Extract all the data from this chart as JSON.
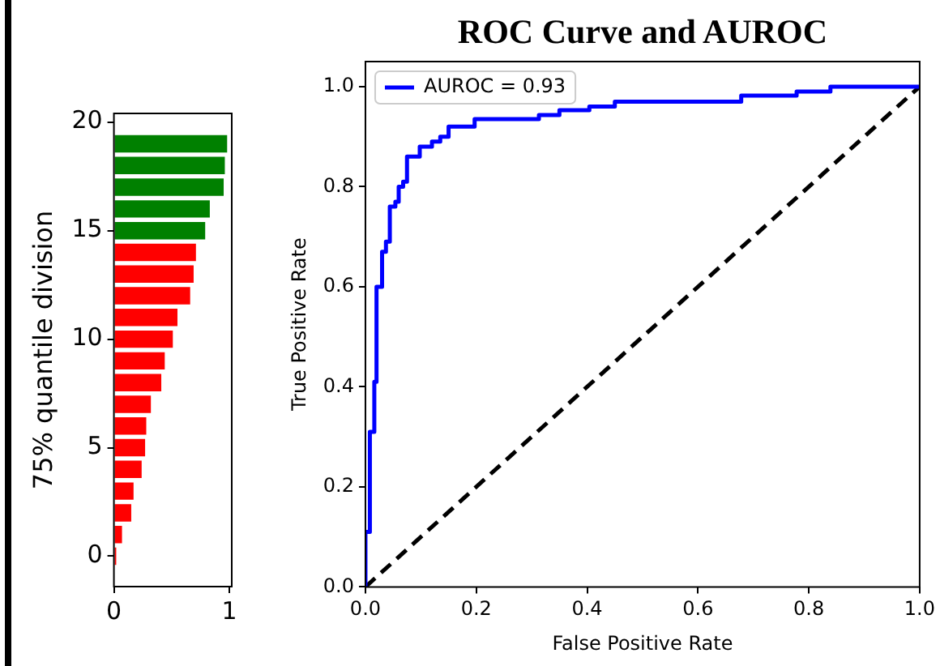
{
  "chart_data": [
    {
      "type": "bar",
      "orientation": "horizontal",
      "ylabel": "75% quantile division",
      "x": [
        0,
        1,
        2,
        3,
        4,
        5,
        6,
        7,
        8,
        9,
        10,
        11,
        12,
        13,
        14,
        15,
        16,
        17,
        18,
        19
      ],
      "values": [
        0.02,
        0.07,
        0.15,
        0.17,
        0.24,
        0.27,
        0.28,
        0.32,
        0.41,
        0.44,
        0.51,
        0.55,
        0.66,
        0.69,
        0.71,
        0.79,
        0.83,
        0.95,
        0.96,
        0.98
      ],
      "colors": [
        "#ff0000",
        "#ff0000",
        "#ff0000",
        "#ff0000",
        "#ff0000",
        "#ff0000",
        "#ff0000",
        "#ff0000",
        "#ff0000",
        "#ff0000",
        "#ff0000",
        "#ff0000",
        "#ff0000",
        "#ff0000",
        "#ff0000",
        "#008000",
        "#008000",
        "#008000",
        "#008000",
        "#008000"
      ],
      "xlim": [
        0,
        1.02
      ],
      "xticks": [
        0,
        1
      ],
      "ylim": [
        -1.4,
        20.4
      ],
      "yticks": [
        0,
        5,
        10,
        15,
        20
      ]
    },
    {
      "type": "line",
      "title": "ROC Curve and AUROC",
      "xlabel": "False Positive Rate",
      "ylabel": "True Positive Rate",
      "legend": "top left",
      "xlim": [
        0,
        1
      ],
      "xticks": [
        {
          "value": 0,
          "label": "0.0"
        },
        0.2,
        0.4,
        0.6,
        0.8,
        {
          "value": 1,
          "label": "1.0"
        }
      ],
      "ylim": [
        0,
        1.05
      ],
      "yticks": [
        {
          "value": 0,
          "label": "0.0"
        },
        0.2,
        0.4,
        0.6,
        0.8,
        {
          "value": 1,
          "label": "1.0"
        }
      ],
      "series": [
        {
          "name": "AUROC = 0.93",
          "color": "#0000ff",
          "x": [
            0,
            0,
            0.008,
            0.008,
            0.016,
            0.016,
            0.02,
            0.02,
            0.03,
            0.03,
            0.037,
            0.037,
            0.044,
            0.044,
            0.054,
            0.054,
            0.06,
            0.06,
            0.068,
            0.068,
            0.075,
            0.075,
            0.098,
            0.098,
            0.12,
            0.12,
            0.135,
            0.135,
            0.15,
            0.15,
            0.197,
            0.197,
            0.313,
            0.313,
            0.35,
            0.35,
            0.404,
            0.404,
            0.45,
            0.45,
            0.678,
            0.678,
            0.778,
            0.778,
            0.839,
            0.839,
            1
          ],
          "values": [
            0,
            0.11,
            0.11,
            0.31,
            0.31,
            0.41,
            0.41,
            0.6,
            0.6,
            0.67,
            0.67,
            0.69,
            0.69,
            0.76,
            0.76,
            0.77,
            0.77,
            0.8,
            0.8,
            0.81,
            0.81,
            0.86,
            0.86,
            0.88,
            0.88,
            0.89,
            0.89,
            0.9,
            0.9,
            0.92,
            0.92,
            0.935,
            0.935,
            0.943,
            0.943,
            0.953,
            0.953,
            0.96,
            0.96,
            0.97,
            0.97,
            0.982,
            0.982,
            0.99,
            0.99,
            1,
            1
          ]
        },
        {
          "color": "#000000",
          "line_style": "dashed",
          "x": [
            0,
            1
          ],
          "values": [
            0,
            1
          ]
        }
      ]
    }
  ]
}
